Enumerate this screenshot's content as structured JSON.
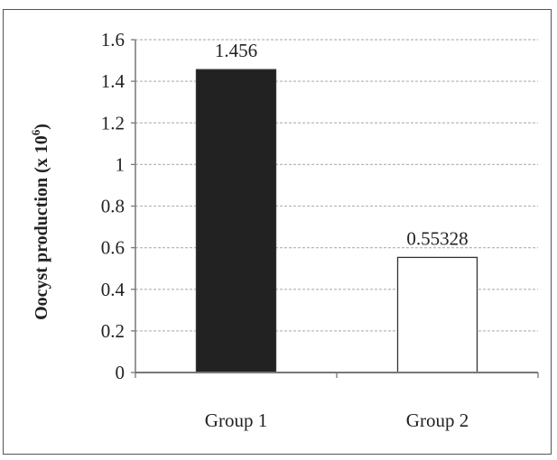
{
  "chart_data": {
    "type": "bar",
    "categories": [
      "Group 1",
      "Group 2"
    ],
    "values": [
      1.456,
      0.55328
    ],
    "data_labels": [
      "1.456",
      "0.55328"
    ],
    "bar_colors": [
      "#222222",
      "#ffffff"
    ],
    "ylabel": "Oocyst production (x 10",
    "ylabel_superscript": "6",
    "ylabel_suffix": ")",
    "xlabel": "",
    "ylim": [
      0,
      1.6
    ],
    "yticks": [
      0,
      0.2,
      0.4,
      0.6,
      0.8,
      1,
      1.2,
      1.4,
      1.6
    ],
    "ytick_labels": [
      "0",
      "0.2",
      "0.4",
      "0.6",
      "0.8",
      "1",
      "1.2",
      "1.4",
      "1.6"
    ],
    "grid": true
  }
}
